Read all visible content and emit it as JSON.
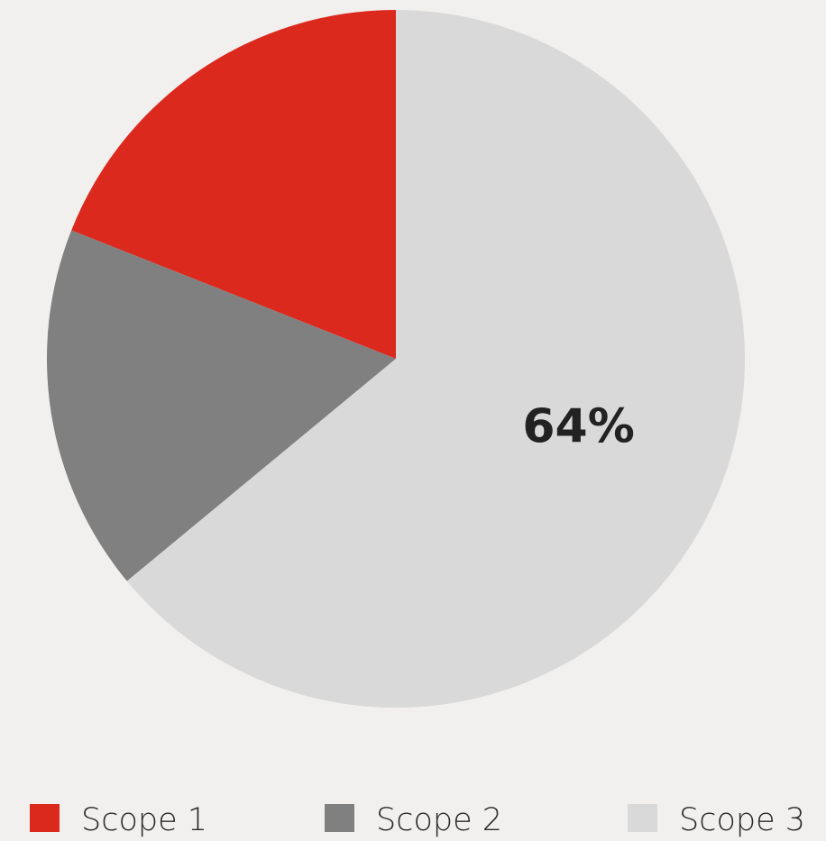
{
  "chart_data": {
    "type": "pie",
    "categories": [
      "Scope 1",
      "Scope 2",
      "Scope 3"
    ],
    "values": [
      19,
      17,
      64
    ],
    "value_labels": [
      null,
      null,
      "64%"
    ],
    "colors": [
      "#dc291e",
      "#808080",
      "#d9d9d9"
    ],
    "legend": "bottom"
  }
}
